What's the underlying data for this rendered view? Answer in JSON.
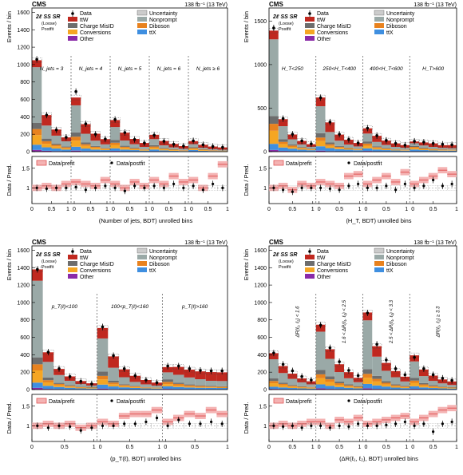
{
  "colors": {
    "ttw": "#c0281f",
    "nonprompt": "#9aa9a7",
    "chargemisid": "#6d6d6d",
    "diboson": "#e8821f",
    "conversions": "#f5a623",
    "ttx": "#3f8fe0",
    "other": "#8a2aa8",
    "ratio_prefit": "#e05555",
    "ratio_band": "#f4b3b3"
  },
  "panels": [
    {
      "cms": "CMS",
      "lumi": "138 fb⁻¹ (13 TeV)",
      "region": "2ℓ SS SR",
      "fit": [
        "(Loose)",
        "Postfit"
      ],
      "ylabel": "Events / bin",
      "ratio_ylabel": "Data / Pred.",
      "xlabel": "(Number of jets, BDT) unrolled bins",
      "yticks": [
        "0",
        "200",
        "400",
        "600",
        "800",
        "1000",
        "1200",
        "1400",
        "1600"
      ],
      "ratio_yticks": [
        "1",
        "1.5"
      ],
      "xticks": [
        "0",
        "0.5",
        "1",
        "0",
        "0.5",
        "1",
        "0",
        "0.5",
        "1",
        "0",
        "0.5",
        "1",
        "0",
        "0.5",
        "1"
      ],
      "legend": [
        "Data",
        "ttW",
        "Charge MisID",
        "Conversions",
        "Other",
        "Uncertainty",
        "Nonprompt",
        "Diboson",
        "ttX"
      ],
      "ratio_legend": [
        "Data/prefit",
        "Data/postfit"
      ],
      "bin_labels": [
        "N_jets = 3",
        "N_jets = 4",
        "N_jets = 5",
        "N_jets = 6",
        "N_jets ≥ 6"
      ]
    },
    {
      "cms": "CMS",
      "lumi": "138 fb⁻¹ (13 TeV)",
      "region": "2ℓ SS SR",
      "fit": [
        "(Loose)",
        "Postfit"
      ],
      "ylabel": "Events / bin",
      "ratio_ylabel": "Data / Pred.",
      "xlabel": "(H_T, BDT) unrolled bins",
      "yticks": [
        "0",
        "500",
        "1000",
        "1500"
      ],
      "ratio_yticks": [
        "1",
        "1.5"
      ],
      "xticks": [
        "0",
        "0.5",
        "1",
        "0",
        "0.5",
        "1",
        "0",
        "0.5",
        "1",
        "0",
        "0.5",
        "1"
      ],
      "legend": [
        "Data",
        "ttW",
        "Charge MisID",
        "Conversions",
        "Other",
        "Uncertainty",
        "Nonprompt",
        "Diboson",
        "ttX"
      ],
      "ratio_legend": [
        "Data/prefit",
        "Data/postfit"
      ],
      "bin_labels": [
        "H_T<250",
        "250<H_T<400",
        "400<H_T<600",
        "H_T>600"
      ]
    },
    {
      "cms": "CMS",
      "lumi": "138 fb⁻¹ (13 TeV)",
      "region": "2ℓ SS SR",
      "fit": [
        "(Loose)",
        "Postfit"
      ],
      "ylabel": "Events / bin",
      "ratio_ylabel": "Data / Pred.",
      "xlabel": "(p_T(ℓ), BDT) unrolled bins",
      "yticks": [
        "0",
        "200",
        "400",
        "600",
        "800",
        "1000",
        "1200",
        "1400",
        "1600"
      ],
      "ratio_yticks": [
        "1",
        "1.5"
      ],
      "xticks": [
        "0",
        "0.5",
        "1",
        "0",
        "0.5",
        "1",
        "0",
        "0.5",
        "1"
      ],
      "legend": [
        "Data",
        "ttW",
        "Charge MisID",
        "Conversions",
        "Other",
        "Uncertainty",
        "Nonprompt",
        "Diboson",
        "ttX"
      ],
      "ratio_legend": [
        "Data/prefit",
        "Data/postfit"
      ],
      "bin_labels": [
        "p_T(ℓ)<100",
        "100<p_T(ℓ)<160",
        "p_T(ℓ)>160"
      ]
    },
    {
      "cms": "CMS",
      "lumi": "138 fb⁻¹ (13 TeV)",
      "region": "2ℓ SS SR",
      "fit": [
        "(Loose)",
        "Postfit"
      ],
      "ylabel": "Events / bin",
      "ratio_ylabel": "Data / Pred.",
      "xlabel": "(ΔR(ℓ₁, ℓ₂), BDT) unrolled bins",
      "yticks": [
        "0",
        "200",
        "400",
        "600",
        "800",
        "1000",
        "1200",
        "1400",
        "1600"
      ],
      "ratio_yticks": [
        "1",
        "1.5"
      ],
      "xticks": [
        "0",
        "0.5",
        "1",
        "0",
        "0.5",
        "1",
        "0",
        "0.5",
        "1",
        "0",
        "0.5",
        "1"
      ],
      "legend": [
        "Data",
        "ttW",
        "Charge MisID",
        "Conversions",
        "Other",
        "Uncertainty",
        "Nonprompt",
        "Diboson",
        "ttX"
      ],
      "ratio_legend": [
        "Data/prefit",
        "Data/postfit"
      ],
      "bin_labels": [
        "ΔR(ℓ₁, ℓ₂) < 1.6",
        "1.6 < ΔR(ℓ₁, ℓ₂) < 2.5",
        "2.5 < ΔR(ℓ₁, ℓ₂) < 3.3",
        "ΔR(ℓ₁, ℓ₂) ≥ 3.3"
      ]
    }
  ],
  "chart_data": [
    {
      "type": "bar",
      "stacked": true,
      "ylim": [
        0,
        1650
      ],
      "ratio_ylim": [
        0.6,
        1.8
      ],
      "groups": 5,
      "bins_per_group": 4,
      "series": [
        {
          "name": "Other",
          "values": [
            20,
            10,
            6,
            4,
            12,
            6,
            4,
            3,
            8,
            4,
            3,
            2,
            5,
            3,
            2,
            1,
            4,
            2,
            1,
            1
          ]
        },
        {
          "name": "ttX",
          "values": [
            60,
            40,
            30,
            20,
            45,
            30,
            20,
            15,
            30,
            20,
            15,
            10,
            20,
            12,
            8,
            6,
            15,
            8,
            6,
            5
          ]
        },
        {
          "name": "Conversions",
          "values": [
            110,
            40,
            25,
            15,
            70,
            30,
            20,
            12,
            40,
            20,
            12,
            8,
            20,
            12,
            8,
            5,
            12,
            8,
            5,
            3
          ]
        },
        {
          "name": "Diboson",
          "values": [
            70,
            30,
            18,
            12,
            45,
            20,
            12,
            8,
            25,
            12,
            8,
            6,
            14,
            8,
            6,
            4,
            10,
            6,
            4,
            3
          ]
        },
        {
          "name": "Charge MisID",
          "values": [
            70,
            30,
            15,
            8,
            50,
            20,
            10,
            6,
            30,
            12,
            8,
            4,
            15,
            8,
            5,
            3,
            10,
            5,
            3,
            2
          ]
        },
        {
          "name": "Nonprompt",
          "values": [
            640,
            150,
            90,
            60,
            310,
            100,
            60,
            40,
            150,
            60,
            40,
            25,
            70,
            30,
            20,
            15,
            35,
            15,
            10,
            10
          ]
        },
        {
          "name": "ttW",
          "values": [
            80,
            120,
            70,
            45,
            90,
            110,
            80,
            60,
            80,
            90,
            60,
            45,
            50,
            50,
            40,
            30,
            35,
            35,
            30,
            25
          ]
        }
      ],
      "data": [
        1060,
        420,
        250,
        165,
        690,
        320,
        200,
        145,
        370,
        220,
        140,
        100,
        190,
        120,
        85,
        65,
        125,
        80,
        60,
        50
      ],
      "ratio_prefit": [
        1.0,
        1.05,
        1.0,
        1.1,
        1.15,
        1.1,
        1.05,
        1.2,
        1.1,
        1.0,
        1.15,
        1.05,
        1.2,
        1.1,
        1.3,
        1.15,
        1.2,
        1.0,
        1.3,
        1.6
      ],
      "ratio_postfit": [
        1.0,
        0.98,
        1.0,
        1.0,
        1.02,
        0.95,
        1.0,
        1.05,
        1.0,
        0.92,
        1.05,
        1.0,
        1.05,
        1.0,
        1.1,
        1.0,
        1.05,
        0.95,
        1.1,
        1.0
      ]
    },
    {
      "type": "bar",
      "stacked": true,
      "ylim": [
        0,
        1650
      ],
      "ratio_ylim": [
        0.6,
        1.8
      ],
      "groups": 4,
      "bins_per_group": 5,
      "series": [
        {
          "name": "Other",
          "values": [
            20,
            8,
            5,
            3,
            2,
            12,
            6,
            4,
            3,
            2,
            8,
            5,
            3,
            2,
            2,
            5,
            3,
            2,
            2,
            2
          ]
        },
        {
          "name": "ttX",
          "values": [
            70,
            40,
            30,
            20,
            15,
            50,
            35,
            25,
            20,
            15,
            30,
            20,
            15,
            12,
            10,
            20,
            15,
            12,
            10,
            10
          ]
        },
        {
          "name": "Conversions",
          "values": [
            150,
            40,
            20,
            12,
            8,
            60,
            25,
            15,
            10,
            8,
            30,
            15,
            10,
            6,
            5,
            15,
            10,
            8,
            5,
            5
          ]
        },
        {
          "name": "Diboson",
          "values": [
            80,
            25,
            15,
            10,
            6,
            40,
            20,
            12,
            8,
            6,
            25,
            12,
            8,
            6,
            5,
            15,
            10,
            8,
            6,
            5
          ]
        },
        {
          "name": "Charge MisID",
          "values": [
            90,
            30,
            12,
            8,
            5,
            50,
            20,
            10,
            6,
            4,
            25,
            10,
            6,
            4,
            3,
            12,
            8,
            5,
            3,
            3
          ]
        },
        {
          "name": "Nonprompt",
          "values": [
            880,
            150,
            60,
            30,
            20,
            310,
            120,
            60,
            35,
            25,
            90,
            50,
            35,
            25,
            20,
            30,
            25,
            20,
            18,
            15
          ]
        },
        {
          "name": "ttW",
          "values": [
            100,
            80,
            55,
            40,
            30,
            100,
            110,
            70,
            55,
            40,
            60,
            70,
            50,
            40,
            30,
            20,
            35,
            40,
            30,
            35
          ]
        }
      ],
      "data": [
        1420,
        380,
        200,
        125,
        90,
        620,
        340,
        200,
        140,
        100,
        270,
        185,
        130,
        95,
        75,
        120,
        110,
        95,
        85,
        80
      ],
      "ratio_prefit": [
        1.0,
        1.05,
        0.95,
        1.1,
        1.05,
        1.15,
        1.1,
        1.05,
        1.3,
        1.35,
        1.1,
        1.2,
        1.3,
        1.15,
        1.4,
        1.1,
        1.2,
        1.3,
        1.45,
        1.35
      ],
      "ratio_postfit": [
        1.0,
        0.95,
        0.9,
        1.0,
        1.0,
        1.0,
        0.98,
        0.95,
        1.05,
        1.1,
        1.0,
        1.0,
        1.05,
        0.95,
        1.1,
        1.0,
        1.05,
        1.2,
        1.05,
        1.1
      ]
    },
    {
      "type": "bar",
      "stacked": true,
      "ylim": [
        0,
        1650
      ],
      "ratio_ylim": [
        0.6,
        1.8
      ],
      "groups": 3,
      "bins_per_group": 6,
      "series": [
        {
          "name": "Other",
          "values": [
            20,
            8,
            5,
            3,
            2,
            2,
            12,
            6,
            4,
            3,
            2,
            2,
            8,
            5,
            4,
            3,
            3,
            3
          ]
        },
        {
          "name": "ttX",
          "values": [
            60,
            35,
            25,
            18,
            12,
            10,
            45,
            30,
            22,
            16,
            12,
            10,
            30,
            25,
            20,
            18,
            16,
            15
          ]
        },
        {
          "name": "Conversions",
          "values": [
            140,
            40,
            20,
            12,
            8,
            6,
            60,
            25,
            14,
            10,
            6,
            5,
            25,
            15,
            10,
            8,
            6,
            5
          ]
        },
        {
          "name": "Diboson",
          "values": [
            70,
            25,
            15,
            10,
            6,
            5,
            40,
            20,
            12,
            8,
            6,
            5,
            25,
            20,
            15,
            12,
            10,
            10
          ]
        },
        {
          "name": "Charge MisID",
          "values": [
            80,
            30,
            12,
            8,
            5,
            4,
            50,
            20,
            10,
            6,
            4,
            3,
            30,
            15,
            10,
            8,
            6,
            5
          ]
        },
        {
          "name": "Nonprompt",
          "values": [
            880,
            180,
            90,
            50,
            30,
            20,
            380,
            150,
            80,
            45,
            30,
            20,
            80,
            90,
            80,
            70,
            60,
            60
          ]
        },
        {
          "name": "ttW",
          "values": [
            130,
            110,
            70,
            50,
            35,
            25,
            120,
            130,
            90,
            70,
            50,
            35,
            60,
            90,
            90,
            90,
            100,
            100
          ]
        }
      ],
      "data": [
        1380,
        430,
        240,
        150,
        95,
        65,
        720,
        390,
        240,
        160,
        110,
        80,
        270,
        270,
        240,
        220,
        215,
        215
      ],
      "ratio_prefit": [
        1.0,
        1.05,
        1.0,
        1.05,
        0.95,
        1.0,
        1.1,
        1.05,
        1.25,
        1.3,
        1.3,
        1.4,
        1.1,
        1.2,
        1.3,
        1.25,
        1.4,
        1.3
      ],
      "ratio_postfit": [
        1.0,
        0.95,
        1.0,
        0.98,
        0.88,
        0.95,
        1.0,
        1.0,
        1.05,
        1.05,
        1.1,
        1.2,
        1.0,
        1.15,
        1.05,
        1.05,
        1.1,
        1.05
      ]
    },
    {
      "type": "bar",
      "stacked": true,
      "ylim": [
        0,
        1650
      ],
      "ratio_ylim": [
        0.6,
        1.8
      ],
      "groups": 4,
      "bins_per_group": 5,
      "series": [
        {
          "name": "Other",
          "values": [
            8,
            5,
            3,
            2,
            2,
            15,
            8,
            5,
            3,
            2,
            15,
            8,
            5,
            3,
            2,
            8,
            5,
            3,
            2,
            2
          ]
        },
        {
          "name": "ttX",
          "values": [
            25,
            20,
            15,
            12,
            10,
            45,
            35,
            25,
            18,
            12,
            50,
            40,
            30,
            20,
            15,
            30,
            20,
            15,
            12,
            10
          ]
        },
        {
          "name": "Conversions",
          "values": [
            40,
            25,
            15,
            10,
            8,
            70,
            45,
            25,
            15,
            10,
            70,
            45,
            25,
            15,
            10,
            40,
            20,
            12,
            8,
            6
          ]
        },
        {
          "name": "Diboson",
          "values": [
            25,
            15,
            10,
            8,
            6,
            45,
            30,
            18,
            12,
            8,
            45,
            30,
            18,
            12,
            8,
            25,
            15,
            10,
            8,
            6
          ]
        },
        {
          "name": "Charge MisID",
          "values": [
            30,
            15,
            10,
            6,
            4,
            50,
            35,
            18,
            12,
            8,
            55,
            35,
            18,
            12,
            8,
            30,
            15,
            10,
            6,
            4
          ]
        },
        {
          "name": "Nonprompt",
          "values": [
            220,
            110,
            70,
            45,
            30,
            440,
            200,
            110,
            70,
            45,
            560,
            220,
            120,
            80,
            50,
            190,
            80,
            50,
            35,
            25
          ]
        },
        {
          "name": "ttW",
          "values": [
            70,
            80,
            60,
            45,
            35,
            80,
            110,
            90,
            70,
            50,
            90,
            120,
            90,
            70,
            55,
            70,
            75,
            60,
            45,
            40
          ]
        }
      ],
      "data": [
        420,
        290,
        215,
        150,
        110,
        740,
        480,
        320,
        220,
        160,
        880,
        520,
        340,
        240,
        170,
        370,
        240,
        170,
        130,
        105
      ],
      "ratio_prefit": [
        1.0,
        1.05,
        1.0,
        1.05,
        1.1,
        1.1,
        1.0,
        1.15,
        1.1,
        1.2,
        1.05,
        1.1,
        1.15,
        1.2,
        1.25,
        1.1,
        1.2,
        1.3,
        1.4,
        1.45
      ],
      "ratio_postfit": [
        1.0,
        0.98,
        1.0,
        0.95,
        1.0,
        1.0,
        0.95,
        1.0,
        0.98,
        1.05,
        1.0,
        1.0,
        1.02,
        1.05,
        1.1,
        1.0,
        1.05,
        0.85,
        1.05,
        1.1
      ]
    }
  ]
}
